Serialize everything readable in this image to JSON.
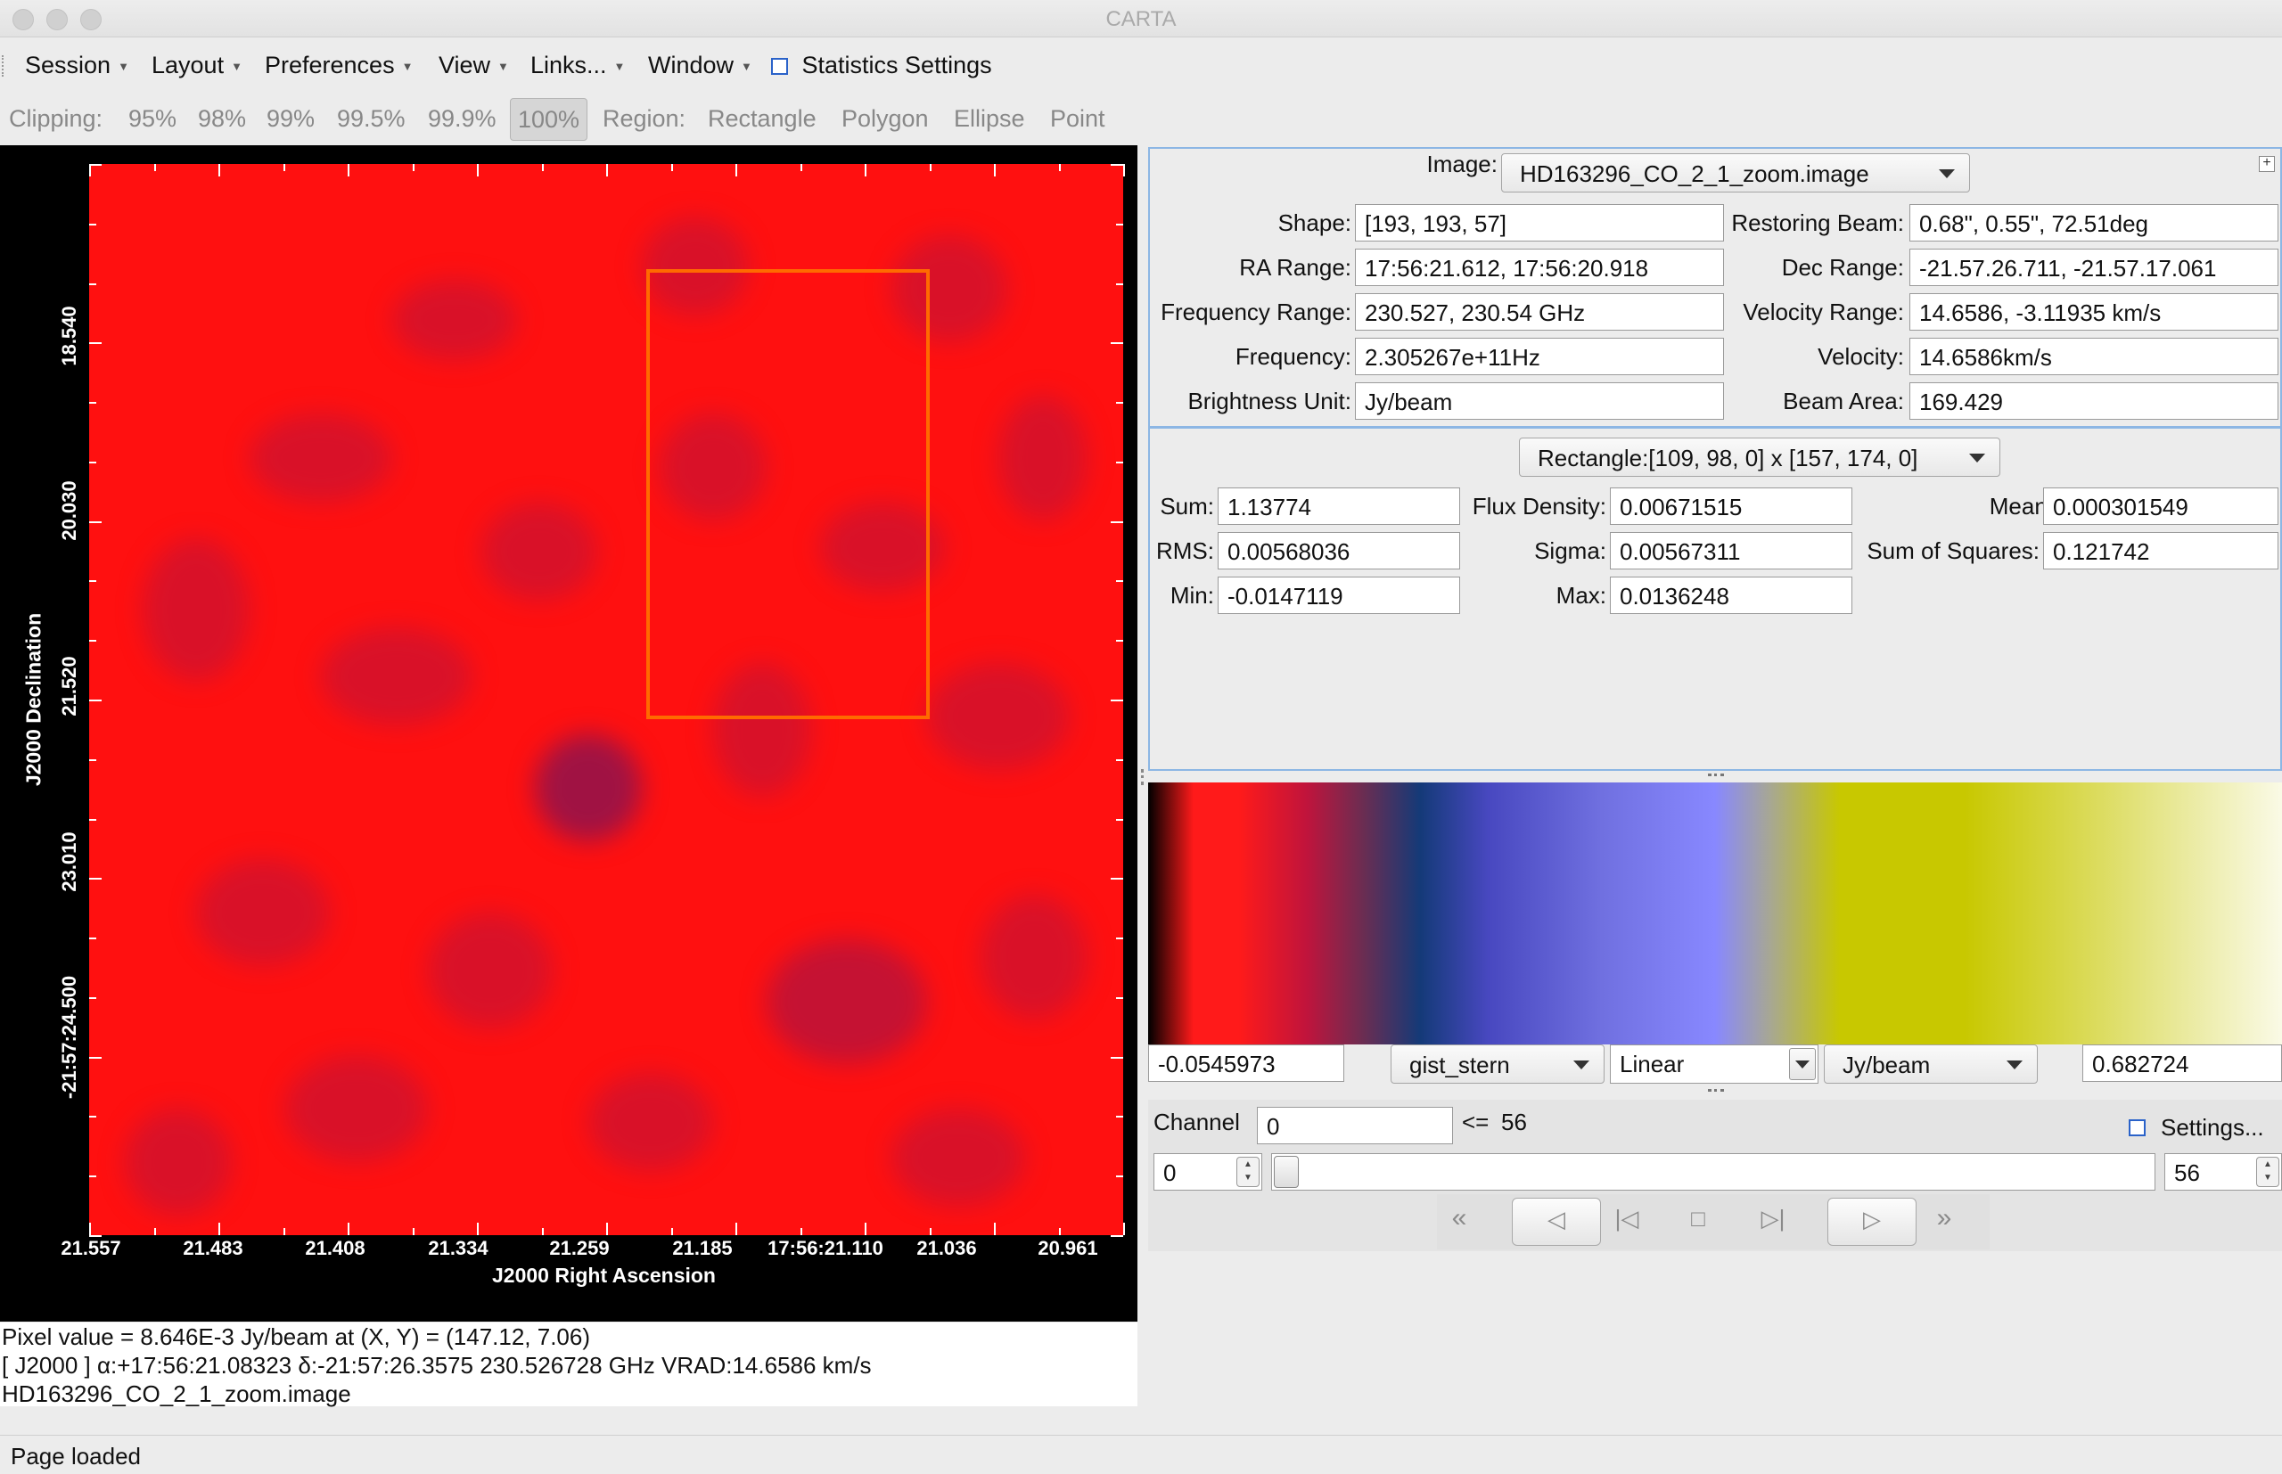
{
  "window": {
    "title": "CARTA"
  },
  "menubar": {
    "items": [
      "Session",
      "Layout",
      "Preferences",
      "View",
      "Links...",
      "Window"
    ],
    "statistics_settings": "Statistics Settings"
  },
  "toolbar": {
    "clipping_label": "Clipping:",
    "clipping_options": [
      "95%",
      "98%",
      "99%",
      "99.5%",
      "99.9%",
      "100%"
    ],
    "clipping_selected": "100%",
    "region_label": "Region:",
    "region_options": [
      "Rectangle",
      "Polygon",
      "Ellipse",
      "Point"
    ]
  },
  "image_view": {
    "x_ticks": [
      "21.557",
      "21.483",
      "21.408",
      "21.334",
      "21.259",
      "21.185",
      "17:56:21.110",
      "21.036",
      "20.961"
    ],
    "y_ticks": [
      "18.540",
      "20.030",
      "21.520",
      "23.010",
      "-21:57:24.500"
    ],
    "x_axis_label": "J2000 Right Ascension",
    "y_axis_label": "J2000 Declination",
    "colors": {
      "image": "#ff1010",
      "region": "#ff6a00"
    }
  },
  "pixel_info": {
    "line1": "Pixel value = 8.646E-3 Jy/beam at (X, Y) = (147.12, 7.06)",
    "line2": "[ J2000 ] α:+17:56:21.08323 δ:-21:57:26.3575 230.526728 GHz VRAD:14.6586 km/s",
    "line3": "HD163296_CO_2_1_zoom.image"
  },
  "image_stats": {
    "image_label": "Image:",
    "image_value": "HD163296_CO_2_1_zoom.image",
    "shape_label": "Shape:",
    "shape": "[193, 193, 57]",
    "ra_label": "RA Range:",
    "ra": "17:56:21.612, 17:56:20.918",
    "freq_range_label": "Frequency Range:",
    "freq_range": "230.527, 230.54 GHz",
    "freq_label": "Frequency:",
    "freq": "2.305267e+11Hz",
    "bunit_label": "Brightness Unit:",
    "bunit": "Jy/beam",
    "beam_label": "Restoring Beam:",
    "beam": "0.68\", 0.55\", 72.51deg",
    "dec_label": "Dec Range:",
    "dec": "-21.57.26.711, -21.57.17.061",
    "vel_range_label": "Velocity Range:",
    "vel_range": "14.6586, -3.11935 km/s",
    "vel_label": "Velocity:",
    "vel": "14.6586km/s",
    "beam_area_label": "Beam Area:",
    "beam_area": "169.429"
  },
  "region_stats": {
    "region_label": "Region:",
    "region_value": "Rectangle:[109, 98, 0] x [157, 174, 0]",
    "sum_label": "Sum:",
    "sum": "1.13774",
    "rms_label": "RMS:",
    "rms": "0.00568036",
    "min_label": "Min:",
    "min": "-0.0147119",
    "flux_label": "Flux Density:",
    "flux": "0.00671515",
    "sigma_label": "Sigma:",
    "sigma": "0.00567311",
    "max_label": "Max:",
    "max": "0.0136248",
    "mean_label": "Mean:",
    "mean": "0.000301549",
    "sumsq_label": "Sum of Squares:",
    "sumsq": "0.121742"
  },
  "colormap": {
    "min": "-0.0545973",
    "name": "gist_stern",
    "scale": "Linear",
    "unit": "Jy/beam",
    "max": "0.682724"
  },
  "channel": {
    "label": "Channel",
    "value": "0",
    "le_label": "<=",
    "max": "56",
    "settings_label": "Settings...",
    "start": "0",
    "end": "56",
    "slider_fraction": 0
  },
  "status": {
    "text": "Page loaded"
  }
}
